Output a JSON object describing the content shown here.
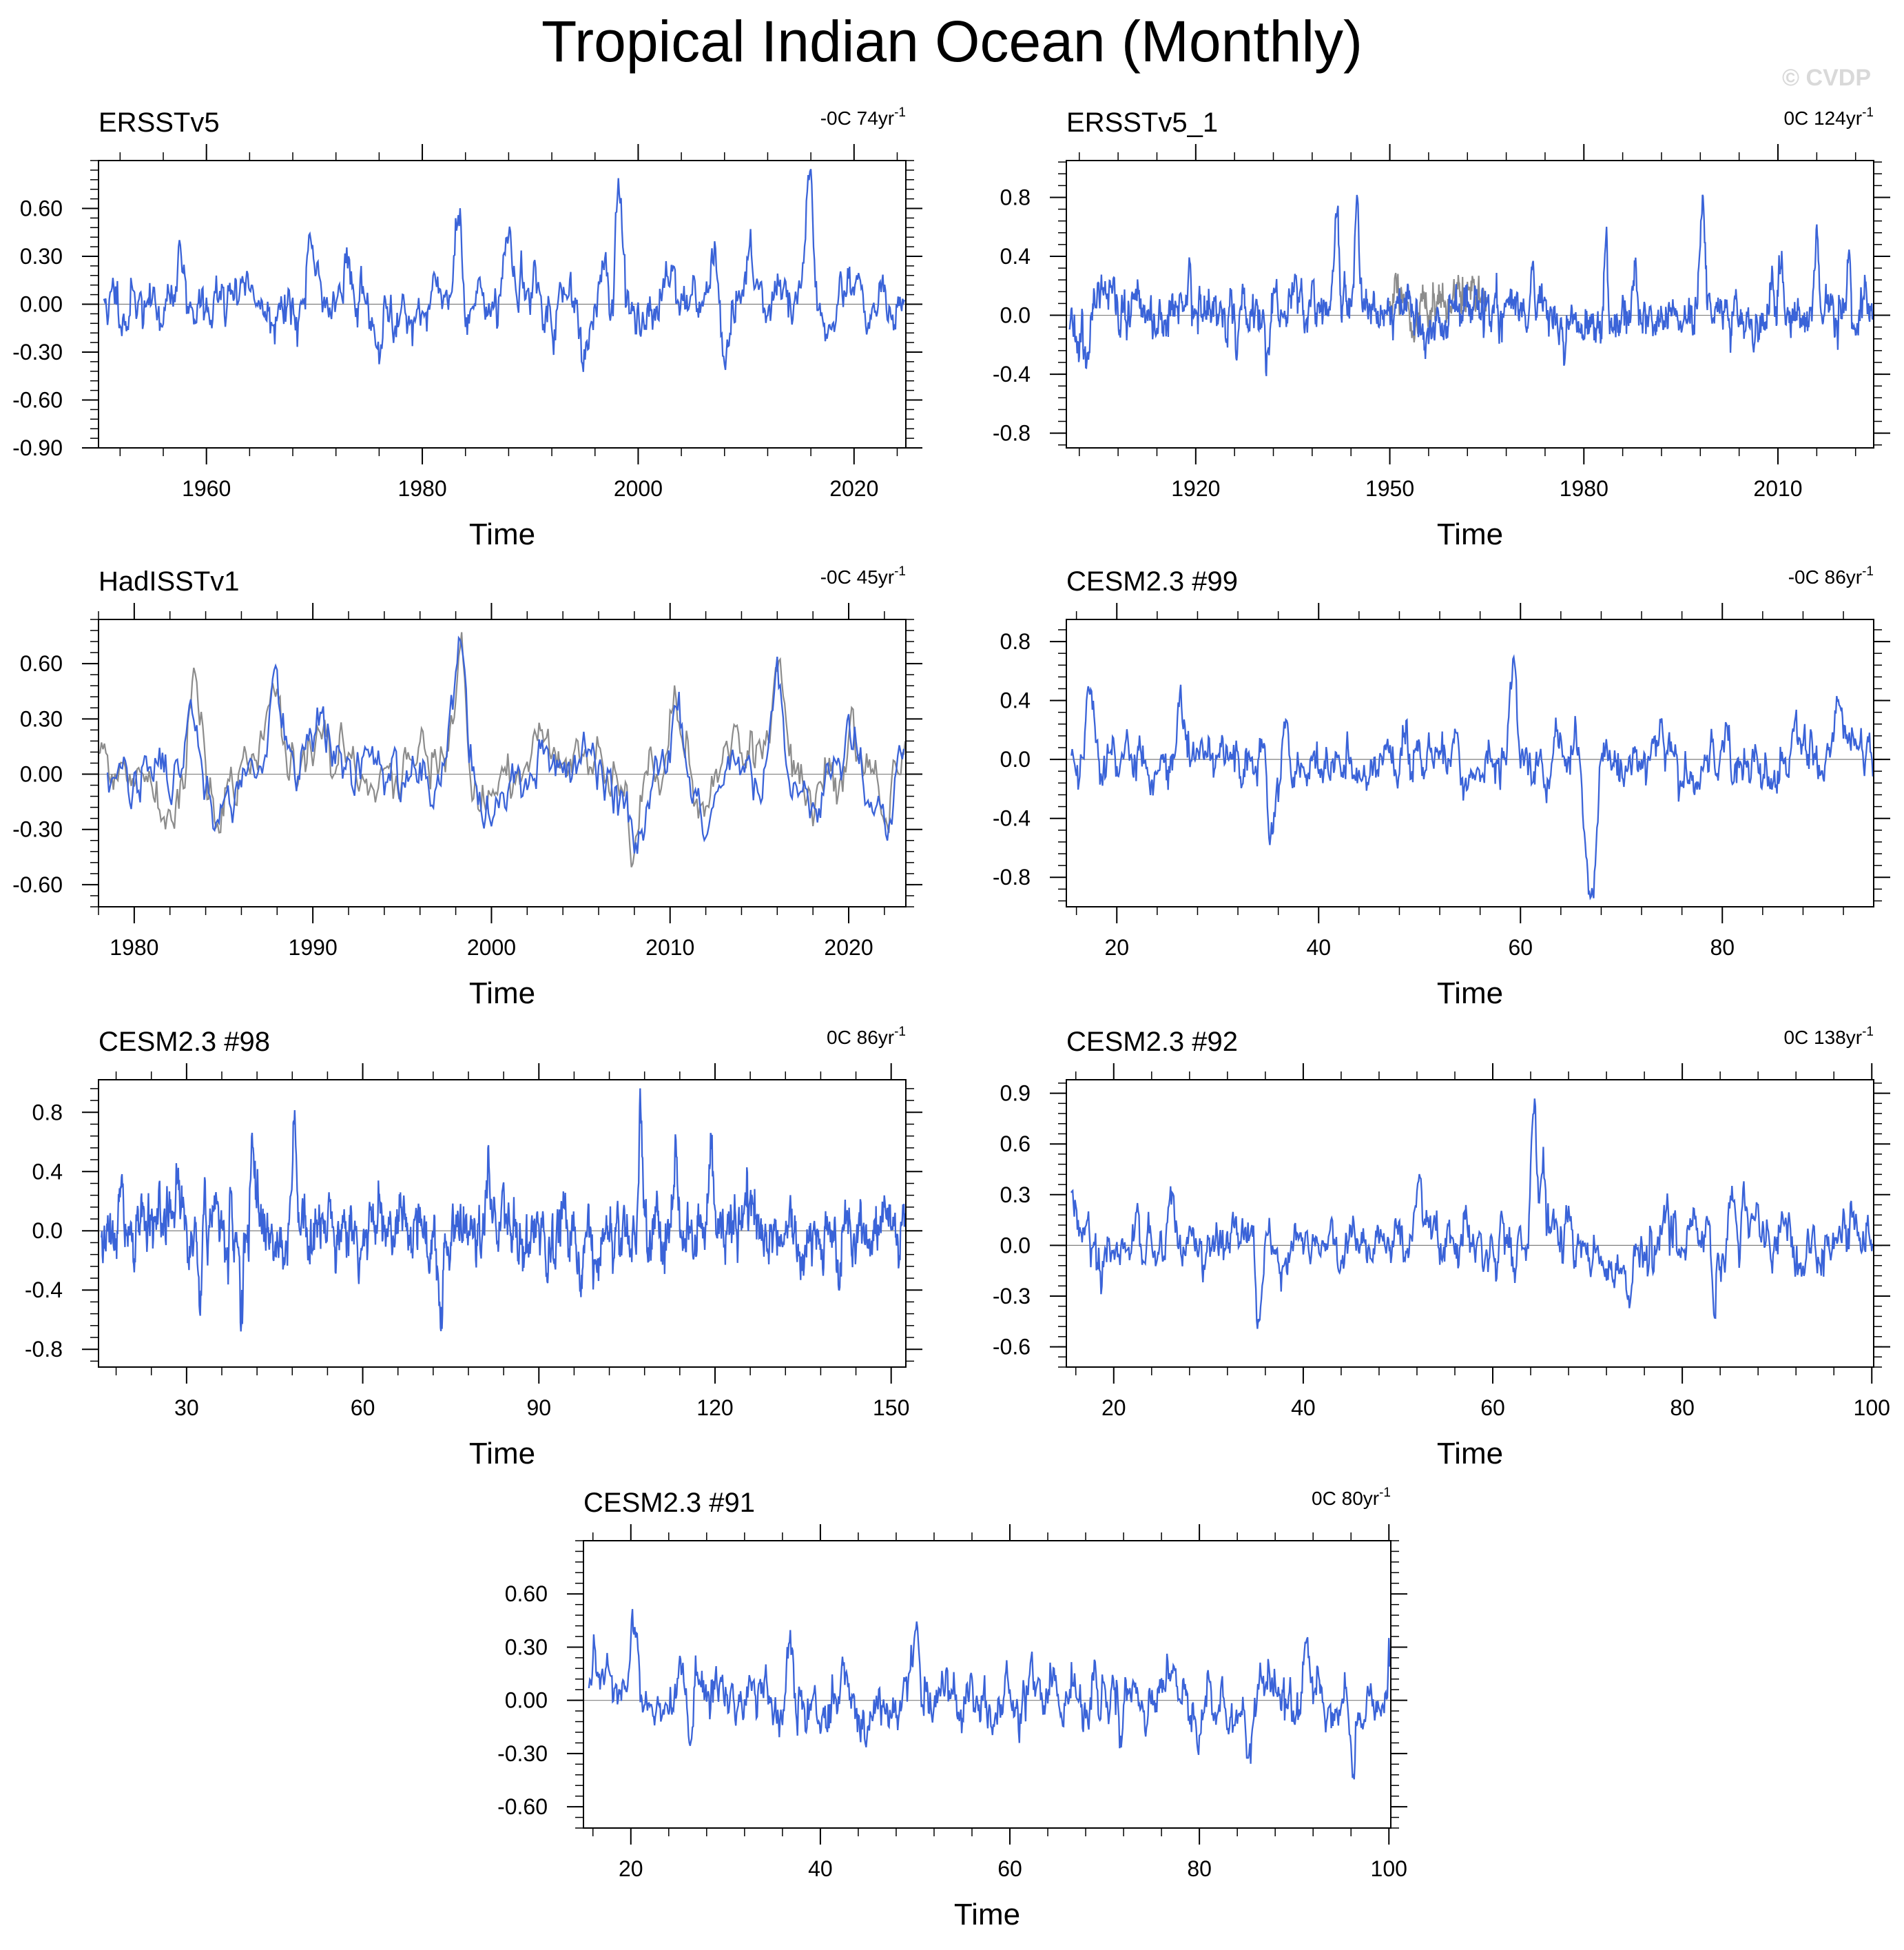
{
  "title": "Tropical Indian Ocean (Monthly)",
  "watermark": "© CVDP",
  "colors": {
    "series": "#3a63d8",
    "observed": "#8c8c8c",
    "axis": "#000000",
    "zero_line": "#808080"
  },
  "chart_data": [
    {
      "type": "line",
      "name": "ERSSTv5",
      "trend_label": "-0C 74yr",
      "trend_sup": "-1",
      "xlabel": "Time",
      "ylabel": "",
      "xlim": [
        1950,
        2024.8
      ],
      "ylim": [
        -0.9,
        0.9
      ],
      "xticks": [
        1960,
        1980,
        2000,
        2020
      ],
      "xtick_labels": [
        "1960",
        "1980",
        "2000",
        "2020"
      ],
      "yticks": [
        -0.9,
        -0.6,
        -0.3,
        0.0,
        0.3,
        0.6
      ],
      "ytick_labels": [
        "-0.90",
        "-0.60",
        "-0.30",
        "0.00",
        "0.30",
        "0.60"
      ],
      "seed": 11,
      "noise": 0.17,
      "events": [
        [
          1957.6,
          0.28
        ],
        [
          1963.6,
          0.25
        ],
        [
          1969.7,
          0.27
        ],
        [
          1973.0,
          0.42
        ],
        [
          1976.0,
          -0.45
        ],
        [
          1983.3,
          0.45
        ],
        [
          1987.9,
          0.42
        ],
        [
          1990.5,
          0.25
        ],
        [
          1992.1,
          -0.25
        ],
        [
          1995.0,
          -0.25
        ],
        [
          1998.3,
          0.72
        ],
        [
          2003.0,
          0.2
        ],
        [
          2008.0,
          -0.4
        ],
        [
          2010.3,
          0.45
        ],
        [
          2016.0,
          0.62
        ],
        [
          2020.4,
          0.3
        ]
      ],
      "obs": null
    },
    {
      "type": "line",
      "name": "ERSSTv5_1",
      "trend_label": "0C 124yr",
      "trend_sup": "-1",
      "xlabel": "Time",
      "ylabel": "",
      "xlim": [
        1900,
        2024.8
      ],
      "ylim": [
        -0.9,
        1.05
      ],
      "xticks": [
        1920,
        1950,
        1980,
        2010
      ],
      "xtick_labels": [
        "1920",
        "1950",
        "1980",
        "2010"
      ],
      "yticks": [
        -0.8,
        -0.4,
        0.0,
        0.4,
        0.8
      ],
      "ytick_labels": [
        "-0.8",
        "-0.4",
        "0.0",
        "0.4",
        "0.8"
      ],
      "seed": 23,
      "noise": 0.16,
      "events": [
        [
          1903,
          -0.3
        ],
        [
          1919,
          0.3
        ],
        [
          1931,
          -0.35
        ],
        [
          1938,
          0.3
        ],
        [
          1941.7,
          0.78
        ],
        [
          1945,
          0.55
        ],
        [
          1972,
          0.3
        ],
        [
          1983.3,
          0.45
        ],
        [
          1987.9,
          0.42
        ],
        [
          1998.3,
          0.72
        ],
        [
          2010.3,
          0.4
        ],
        [
          2016.0,
          0.62
        ],
        [
          2021,
          0.3
        ]
      ],
      "obs": {
        "start": 1950,
        "end": 1965,
        "seed": 29
      }
    },
    {
      "type": "line",
      "name": "HadISSTv1",
      "trend_label": "-0C 45yr",
      "trend_sup": "-1",
      "xlabel": "Time",
      "ylabel": "",
      "xlim": [
        1978,
        2023.2
      ],
      "ylim": [
        -0.72,
        0.84
      ],
      "xticks": [
        1980,
        1990,
        2000,
        2010,
        2020
      ],
      "xtick_labels": [
        "1980",
        "1990",
        "2000",
        "2010",
        "2020"
      ],
      "yticks": [
        -0.6,
        -0.3,
        0.0,
        0.3,
        0.6
      ],
      "ytick_labels": [
        "-0.60",
        "-0.30",
        "0.00",
        "0.30",
        "0.60"
      ],
      "seed": 37,
      "noise": 0.15,
      "events": [
        [
          1983.3,
          0.48
        ],
        [
          1984.7,
          -0.32
        ],
        [
          1987.9,
          0.48
        ],
        [
          1990.5,
          0.2
        ],
        [
          1998.3,
          0.68
        ],
        [
          2000,
          -0.2
        ],
        [
          2003,
          0.2
        ],
        [
          2008.0,
          -0.45
        ],
        [
          2010.3,
          0.45
        ],
        [
          2012,
          -0.3
        ],
        [
          2016.0,
          0.65
        ],
        [
          2018,
          -0.25
        ],
        [
          2020.2,
          0.32
        ],
        [
          2022,
          -0.25
        ]
      ],
      "obs": {
        "start": 1978,
        "end": 2023.2,
        "seed": 41
      }
    },
    {
      "type": "line",
      "name": "CESM2.3 #99",
      "trend_label": "-0C 86yr",
      "trend_sup": "-1",
      "xlabel": "Time",
      "ylabel": "",
      "xlim": [
        15,
        95
      ],
      "ylim": [
        -1.0,
        0.95
      ],
      "xticks": [
        20,
        40,
        60,
        80
      ],
      "xtick_labels": [
        "20",
        "40",
        "60",
        "80"
      ],
      "yticks": [
        -0.8,
        -0.4,
        0.0,
        0.4,
        0.8
      ],
      "ytick_labels": [
        "-0.8",
        "-0.4",
        "0.0",
        "0.4",
        "0.8"
      ],
      "seed": 53,
      "noise": 0.18,
      "events": [
        [
          17.3,
          0.65
        ],
        [
          26.3,
          0.45
        ],
        [
          35.3,
          -0.55
        ],
        [
          36.8,
          0.35
        ],
        [
          59.3,
          0.65
        ],
        [
          66.5,
          -0.6
        ],
        [
          67.2,
          -0.8
        ],
        [
          91.5,
          0.35
        ]
      ],
      "obs": null
    },
    {
      "type": "line",
      "name": "CESM2.3 #98",
      "trend_label": "0C 86yr",
      "trend_sup": "-1",
      "xlabel": "Time",
      "ylabel": "",
      "xlim": [
        15,
        152.5
      ],
      "ylim": [
        -0.92,
        1.02
      ],
      "xticks": [
        30,
        60,
        90,
        120,
        150
      ],
      "xtick_labels": [
        "30",
        "60",
        "90",
        "120",
        "150"
      ],
      "yticks": [
        -0.8,
        -0.4,
        0.0,
        0.4,
        0.8
      ],
      "ytick_labels": [
        "-0.8",
        "-0.4",
        "0.0",
        "0.4",
        "0.8"
      ],
      "seed": 67,
      "noise": 0.21,
      "events": [
        [
          41.3,
          0.6
        ],
        [
          48.3,
          0.65
        ],
        [
          39.3,
          -0.55
        ],
        [
          32.3,
          -0.55
        ],
        [
          73.3,
          -0.6
        ],
        [
          81.3,
          0.5
        ],
        [
          107.3,
          0.72
        ],
        [
          113.3,
          0.5
        ],
        [
          119.3,
          0.6
        ]
      ],
      "obs": null
    },
    {
      "type": "line",
      "name": "CESM2.3 #92",
      "trend_label": "0C 138yr",
      "trend_sup": "-1",
      "xlabel": "Time",
      "ylabel": "",
      "xlim": [
        15,
        100.2
      ],
      "ylim": [
        -0.72,
        0.98
      ],
      "xticks": [
        20,
        40,
        60,
        80,
        100
      ],
      "xtick_labels": [
        "20",
        "40",
        "60",
        "80",
        "100"
      ],
      "yticks": [
        -0.6,
        -0.3,
        0.0,
        0.3,
        0.6,
        0.9
      ],
      "ytick_labels": [
        "-0.6",
        "-0.3",
        "0.0",
        "0.3",
        "0.6",
        "0.9"
      ],
      "seed": 79,
      "noise": 0.15,
      "events": [
        [
          15.5,
          0.4
        ],
        [
          26.1,
          0.35
        ],
        [
          35.3,
          -0.45
        ],
        [
          52.3,
          0.45
        ],
        [
          64.3,
          0.72
        ],
        [
          65.3,
          0.45
        ],
        [
          83.3,
          -0.38
        ],
        [
          85.3,
          0.35
        ]
      ],
      "obs": null
    },
    {
      "type": "line",
      "name": "CESM2.3 #91",
      "trend_label": "0C 80yr",
      "trend_sup": "-1",
      "xlabel": "Time",
      "ylabel": "",
      "xlim": [
        15,
        100.2
      ],
      "ylim": [
        -0.72,
        0.9
      ],
      "xticks": [
        20,
        40,
        60,
        80,
        100
      ],
      "xtick_labels": [
        "20",
        "40",
        "60",
        "80",
        "100"
      ],
      "yticks": [
        -0.6,
        -0.3,
        0.0,
        0.3,
        0.6
      ],
      "ytick_labels": [
        "-0.60",
        "-0.30",
        "0.00",
        "0.30",
        "0.60"
      ],
      "seed": 97,
      "noise": 0.16,
      "events": [
        [
          20.3,
          0.35
        ],
        [
          26.3,
          -0.3
        ],
        [
          36.8,
          0.42
        ],
        [
          50.1,
          0.38
        ],
        [
          85.3,
          -0.35
        ],
        [
          91.3,
          0.35
        ],
        [
          96.2,
          -0.3
        ]
      ],
      "obs": null
    }
  ]
}
